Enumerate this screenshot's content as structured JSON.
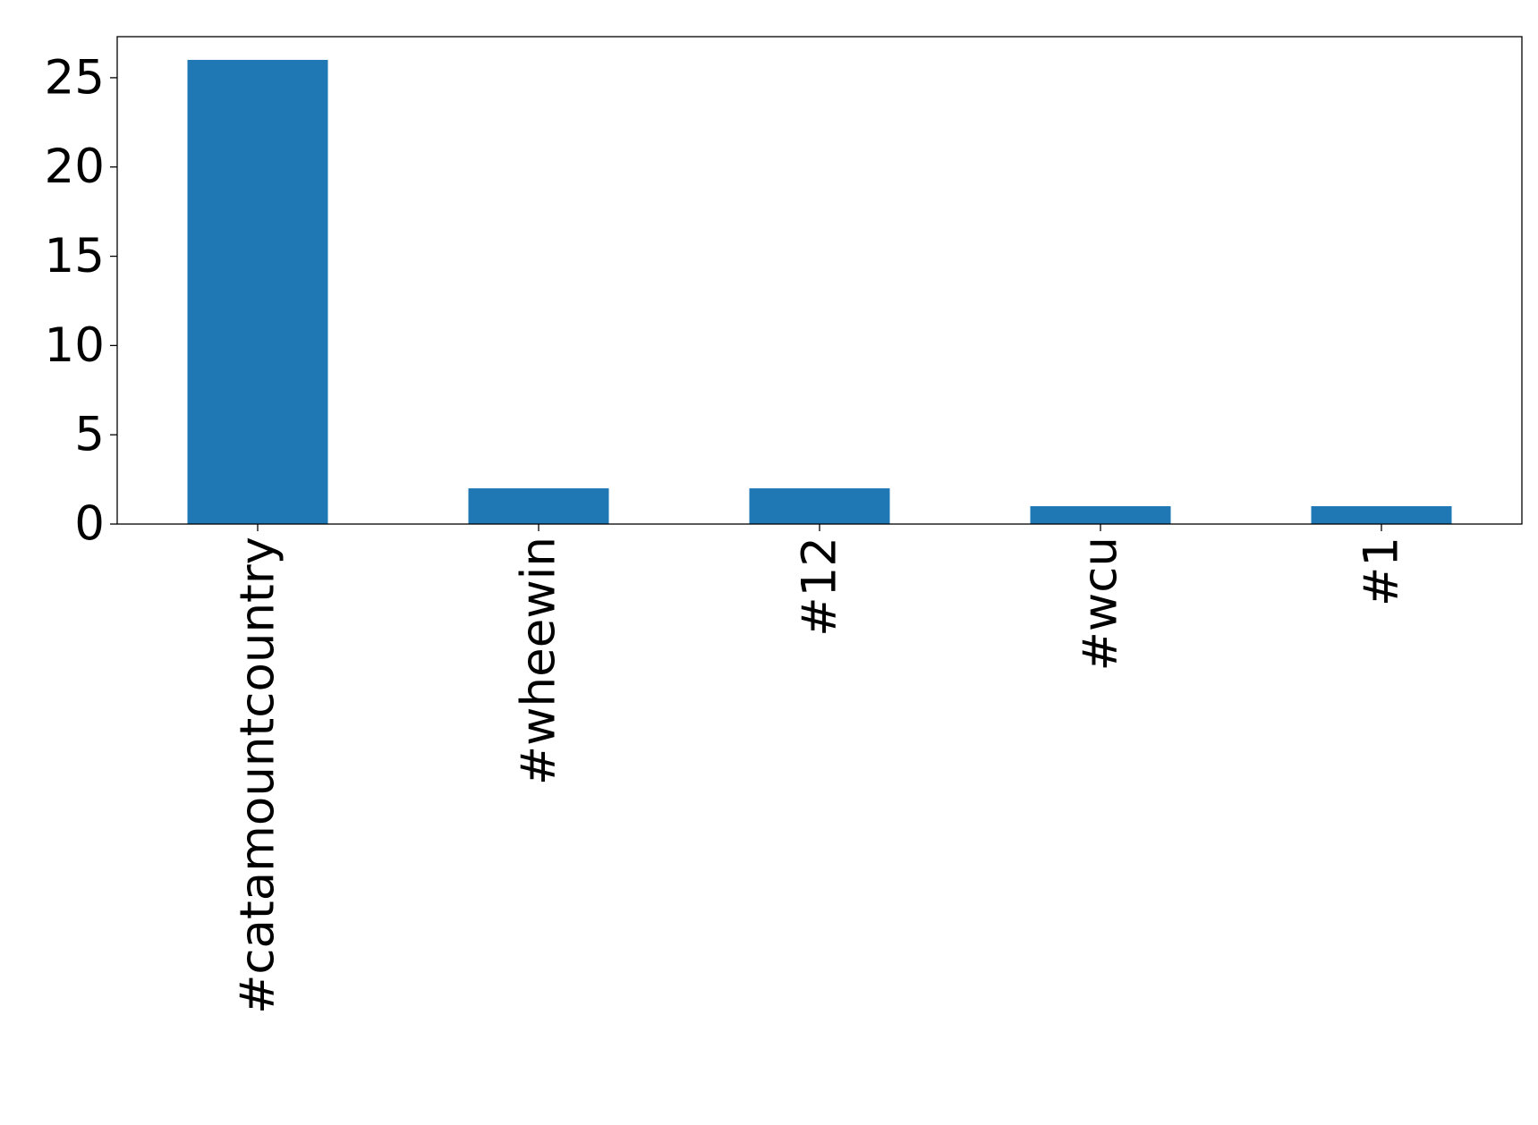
{
  "chart_data": {
    "type": "bar",
    "title": "",
    "xlabel": "",
    "ylabel": "",
    "categories": [
      "#catamountcountry",
      "#wheewin",
      "#12",
      "#wcu",
      "#1"
    ],
    "values": [
      26,
      2,
      2,
      1,
      1
    ],
    "ylim": [
      0,
      27.3
    ],
    "yticks": [
      "0",
      "5",
      "10",
      "15",
      "20",
      "25"
    ],
    "grid": false,
    "legend": "none",
    "bar_color": "#1f77b4",
    "x_tick_rotation": "vertical"
  }
}
